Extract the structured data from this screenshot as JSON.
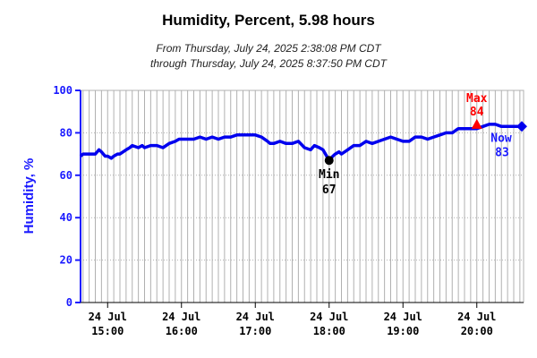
{
  "colors": {
    "series": "#0000ee",
    "axis": "#1a1aff",
    "grid": "#b0b0b0",
    "min_marker": "#000000",
    "max_marker": "#ff0000",
    "now_marker": "#0000ee"
  },
  "chart_data": {
    "type": "line",
    "title": "Humidity, Percent, 5.98 hours",
    "subtitle_line1": "From Thursday, July 24, 2025 2:38:08 PM CDT",
    "subtitle_line2": "through Thursday, July 24, 2025 8:37:50 PM CDT",
    "ylabel": "Humidity, %",
    "xlabel": "",
    "ylim": [
      0,
      100
    ],
    "xlim": [
      "14:38",
      "20:38"
    ],
    "yticks": [
      "0",
      "20",
      "40",
      "60",
      "80",
      "100"
    ],
    "xticks": [
      {
        "date": "24 Jul",
        "time": "15:00"
      },
      {
        "date": "24 Jul",
        "time": "16:00"
      },
      {
        "date": "24 Jul",
        "time": "17:00"
      },
      {
        "date": "24 Jul",
        "time": "18:00"
      },
      {
        "date": "24 Jul",
        "time": "19:00"
      },
      {
        "date": "24 Jul",
        "time": "20:00"
      }
    ],
    "grid": true,
    "series": [
      {
        "x": [
          "14:38",
          "14:40",
          "14:45",
          "14:50",
          "14:53",
          "14:55",
          "14:58",
          "15:00",
          "15:03",
          "15:05",
          "15:08",
          "15:10",
          "15:15",
          "15:18",
          "15:20",
          "15:25",
          "15:28",
          "15:30",
          "15:35",
          "15:40",
          "15:45",
          "15:50",
          "15:55",
          "15:58",
          "16:00",
          "16:05",
          "16:10",
          "16:15",
          "16:20",
          "16:25",
          "16:30",
          "16:35",
          "16:40",
          "16:45",
          "16:50",
          "16:55",
          "17:00",
          "17:05",
          "17:10",
          "17:12",
          "17:15",
          "17:20",
          "17:25",
          "17:30",
          "17:35",
          "17:40",
          "17:45",
          "17:48",
          "17:52",
          "17:55",
          "18:00",
          "18:03",
          "18:05",
          "18:08",
          "18:10",
          "18:15",
          "18:20",
          "18:25",
          "18:30",
          "18:35",
          "18:40",
          "18:45",
          "18:50",
          "18:55",
          "19:00",
          "19:05",
          "19:10",
          "19:15",
          "19:20",
          "19:25",
          "19:30",
          "19:35",
          "19:40",
          "19:45",
          "19:48",
          "19:50",
          "20:00",
          "20:05",
          "20:10",
          "20:15",
          "20:20",
          "20:25",
          "20:30",
          "20:38"
        ],
        "y": [
          69,
          70,
          70,
          70,
          72,
          71,
          69,
          69,
          68,
          69,
          70,
          70,
          72,
          73,
          74,
          73,
          74,
          73,
          74,
          74,
          73,
          75,
          76,
          77,
          77,
          77,
          77,
          78,
          77,
          78,
          77,
          78,
          78,
          79,
          79,
          79,
          79,
          78,
          76,
          75,
          75,
          76,
          75,
          75,
          76,
          73,
          72,
          74,
          73,
          72,
          67,
          69,
          70,
          71,
          70,
          72,
          74,
          74,
          76,
          75,
          76,
          77,
          78,
          77,
          76,
          76,
          78,
          78,
          77,
          78,
          79,
          80,
          80,
          82,
          82,
          82,
          82,
          83,
          84,
          84,
          83,
          83,
          83,
          83
        ]
      }
    ],
    "annotations": {
      "min": {
        "label": "Min",
        "value": "67",
        "x": "18:00",
        "y": 67
      },
      "max": {
        "label": "Max",
        "value": "84",
        "x": "20:00",
        "y": 84
      },
      "now": {
        "label": "Now",
        "value": "83",
        "x": "20:38",
        "y": 83
      }
    }
  }
}
